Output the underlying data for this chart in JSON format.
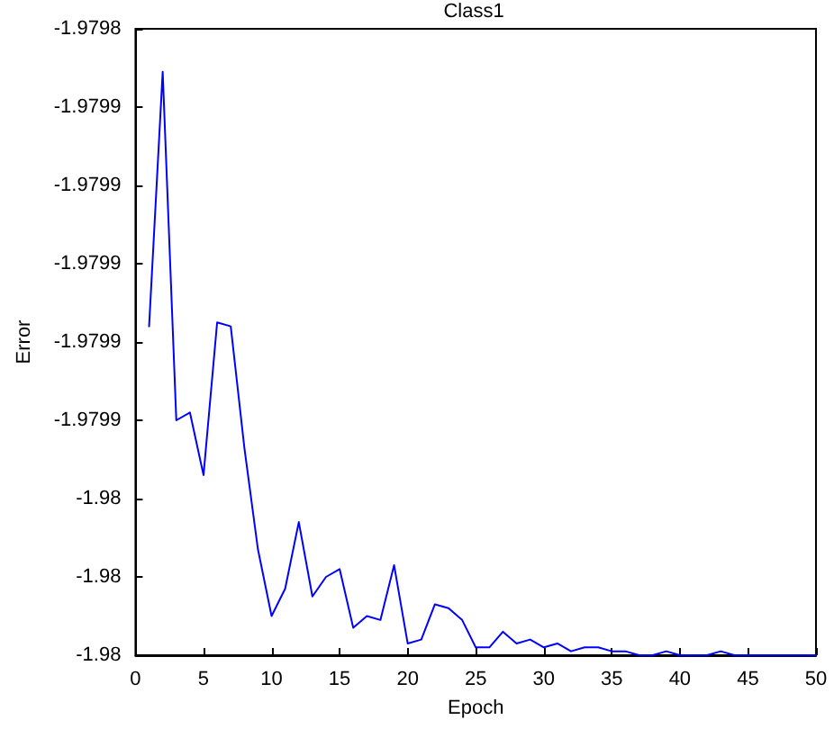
{
  "chart_data": {
    "type": "line",
    "title": "Class1",
    "xlabel": "Epoch",
    "ylabel": "Error",
    "x": [
      1,
      2,
      3,
      4,
      5,
      6,
      7,
      8,
      9,
      10,
      11,
      12,
      13,
      14,
      15,
      16,
      17,
      18,
      19,
      20,
      21,
      22,
      23,
      24,
      25,
      26,
      27,
      28,
      29,
      30,
      31,
      32,
      33,
      34,
      35,
      36,
      37,
      38,
      39,
      40,
      41,
      42,
      43,
      44,
      45,
      46,
      47,
      48,
      49,
      50
    ],
    "series": [
      {
        "color": "#0000ff",
        "values": [
          -1.979916,
          -1.979851,
          -1.97994,
          -1.979938,
          -1.979954,
          -1.979915,
          -1.979916,
          -1.979947,
          -1.979973,
          -1.97999,
          -1.979983,
          -1.979966,
          -1.979985,
          -1.97998,
          -1.979978,
          -1.979993,
          -1.97999,
          -1.979991,
          -1.979977,
          -1.979997,
          -1.979996,
          -1.979987,
          -1.979988,
          -1.979991,
          -1.979998,
          -1.979998,
          -1.979994,
          -1.979997,
          -1.979996,
          -1.979998,
          -1.979997,
          -1.979999,
          -1.979998,
          -1.979998,
          -1.979999,
          -1.979999,
          -1.98,
          -1.98,
          -1.979999,
          -1.98,
          -1.98,
          -1.98,
          -1.979999,
          -1.98,
          -1.98,
          -1.98,
          -1.98,
          -1.98,
          -1.98,
          -1.98
        ]
      }
    ],
    "xlim": [
      0,
      50
    ],
    "xticks": [
      0,
      5,
      10,
      15,
      20,
      25,
      30,
      35,
      40,
      45,
      50
    ],
    "ylim": [
      -1.98,
      -1.97984
    ],
    "yticks": [
      {
        "value": -1.98,
        "label": "-1.98"
      },
      {
        "value": -1.97998,
        "label": "-1.98"
      },
      {
        "value": -1.97996,
        "label": "-1.98"
      },
      {
        "value": -1.97994,
        "label": "-1.9799"
      },
      {
        "value": -1.97992,
        "label": "-1.9799"
      },
      {
        "value": -1.9799,
        "label": "-1.9799"
      },
      {
        "value": -1.97988,
        "label": "-1.9799"
      },
      {
        "value": -1.97986,
        "label": "-1.9799"
      },
      {
        "value": -1.97984,
        "label": "-1.9798"
      }
    ],
    "grid": false,
    "marker": "none",
    "line_style": "solid"
  }
}
